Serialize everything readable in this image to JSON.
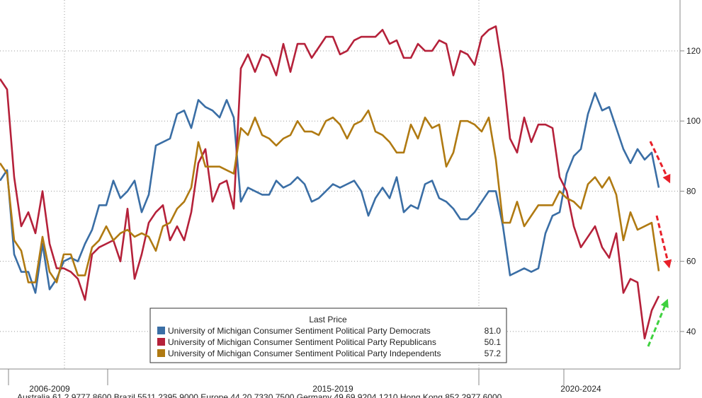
{
  "chart_data": {
    "type": "line",
    "categories": [
      null,
      null,
      null,
      null,
      null,
      null,
      null,
      "2006-2009",
      null,
      null,
      null,
      null,
      null,
      null,
      null,
      null,
      null,
      null,
      null,
      null,
      null,
      null,
      null,
      null,
      null,
      null,
      null,
      null,
      null,
      null,
      null,
      null,
      null,
      null,
      null,
      null,
      null,
      null,
      null,
      null,
      null,
      null,
      null,
      null,
      null,
      null,
      null,
      "2015-2019",
      null,
      null,
      null,
      null,
      null,
      null,
      null,
      null,
      null,
      null,
      null,
      null,
      null,
      null,
      null,
      null,
      null,
      null,
      null,
      null,
      null,
      null,
      null,
      null,
      null,
      null,
      null,
      null,
      null,
      null,
      null,
      null,
      null,
      null,
      "2020-2024",
      null,
      null,
      null,
      null,
      null,
      null,
      null,
      null,
      null,
      null,
      null
    ],
    "series": [
      {
        "name": "University of Michigan Consumer Sentiment Political Party Democrats",
        "color": "#3a6ea5",
        "last_price": {
          "value": 81,
          "label": "81.0"
        },
        "values": [
          83,
          86,
          62,
          57,
          57,
          51,
          65,
          52,
          55,
          60,
          61,
          60,
          65,
          69,
          76,
          76,
          83,
          78,
          80,
          83,
          74,
          79,
          93,
          94,
          95,
          102,
          103,
          98,
          106,
          104,
          103,
          101,
          106,
          101,
          77,
          81,
          80,
          79,
          79,
          83,
          81,
          82,
          84,
          82,
          77,
          78,
          80,
          82,
          81,
          82,
          83,
          80,
          73,
          78,
          81,
          78,
          84,
          74,
          76,
          75,
          82,
          83,
          78,
          77,
          75,
          72,
          72,
          74,
          77,
          80,
          80,
          70,
          56,
          57,
          58,
          57,
          58,
          68,
          73,
          74,
          85,
          90,
          92,
          102,
          108,
          103,
          104,
          98,
          92,
          88,
          92,
          89,
          91,
          81
        ]
      },
      {
        "name": "University of Michigan Consumer Sentiment Political Party Republicans",
        "color": "#b5213a",
        "last_price": {
          "value": 50.1,
          "label": "50.1"
        },
        "values": [
          112,
          109,
          84,
          70,
          74,
          68,
          80,
          65,
          58,
          58,
          57,
          55,
          49,
          62,
          64,
          65,
          66,
          60,
          75,
          55,
          62,
          71,
          74,
          76,
          66,
          70,
          66,
          74,
          88,
          92,
          77,
          82,
          83,
          75,
          115,
          119,
          114,
          119,
          118,
          113,
          122,
          114,
          122,
          122,
          118,
          121,
          124,
          124,
          119,
          120,
          123,
          124,
          124,
          124,
          126,
          122,
          123,
          118,
          118,
          122,
          120,
          120,
          123,
          122,
          113,
          120,
          119,
          116,
          124,
          126,
          127,
          114,
          95,
          91,
          101,
          94,
          99,
          99,
          98,
          84,
          80,
          70,
          64,
          67,
          70,
          64,
          61,
          68,
          51,
          55,
          54,
          38,
          46,
          50.1
        ]
      },
      {
        "name": "University of Michigan Consumer Sentiment Political Party Independents",
        "color": "#b07a12",
        "last_price": {
          "value": 57.2,
          "label": "57.2"
        },
        "values": [
          88,
          85,
          66,
          63,
          54,
          54,
          67,
          57,
          54,
          62,
          62,
          56,
          56,
          64,
          66,
          70,
          66,
          68,
          69,
          67,
          68,
          67,
          63,
          70,
          71,
          75,
          77,
          81,
          94,
          87,
          87,
          87,
          86,
          85,
          98,
          96,
          101,
          96,
          95,
          93,
          95,
          96,
          100,
          97,
          97,
          96,
          100,
          101,
          99,
          95,
          99,
          100,
          103,
          97,
          96,
          94,
          91,
          91,
          99,
          95,
          101,
          98,
          99,
          87,
          91,
          100,
          100,
          99,
          97,
          101,
          89,
          71,
          71,
          77,
          70,
          73,
          76,
          76,
          76,
          80,
          78,
          77,
          75,
          82,
          84,
          81,
          84,
          79,
          66,
          74,
          69,
          70,
          71,
          57.2
        ]
      }
    ],
    "legend_title": "Last Price",
    "ylim": [
      29.3,
      134.5
    ],
    "yticks": [
      40,
      60,
      80,
      100,
      120
    ],
    "grid": true,
    "footer": "Australia 61 2 9777 8600 Brazil 5511 2395 9000 Europe 44 20 7330 7500 Germany 49 69 9204 1210 Hong Kong 852 2977 6000"
  }
}
